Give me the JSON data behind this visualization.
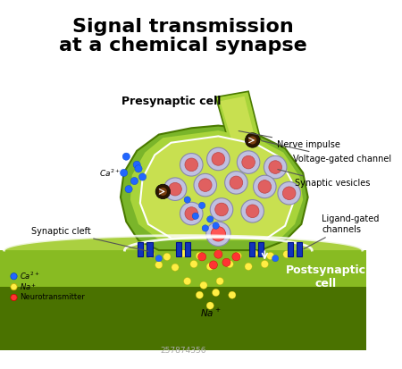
{
  "title_line1": "Signal transmission",
  "title_line2": "at a chemical synapse",
  "bg_color": "#ffffff",
  "presynaptic_label": "Presynaptic cell",
  "postsynaptic_label": "Postsynaptic\ncell",
  "nerve_impulse_label": "Nerve impulse",
  "voltage_gated_label": "Voltage-gated channel",
  "synaptic_vesicles_label": "Synaptic vesicles",
  "ligand_gated_label": "Ligand-gated\nchannels",
  "synaptic_cleft_label": "Synaptic cleft",
  "na_label": "Na⁺",
  "ca_label": "Ca²⁺",
  "legend_ca": "Ca²⁺",
  "legend_na": "Na⁺",
  "legend_nt": "Neurotransmitter",
  "cell_green_light": "#a8d43a",
  "cell_green_mid": "#7ab52a",
  "cell_green_dark": "#4a7a00",
  "cell_inner_light": "#c8e050",
  "vesicle_outer": "#c0c0e0",
  "vesicle_inner": "#e06060",
  "ca_color": "#2266ff",
  "na_color": "#ffee44",
  "nt_color": "#ff3333",
  "channel_blue": "#1133bb",
  "post_green_light": "#88bb22",
  "post_green_dark": "#4a7200",
  "axon_green": "#8dc83a",
  "watermark_gray": "#bbbbbb"
}
